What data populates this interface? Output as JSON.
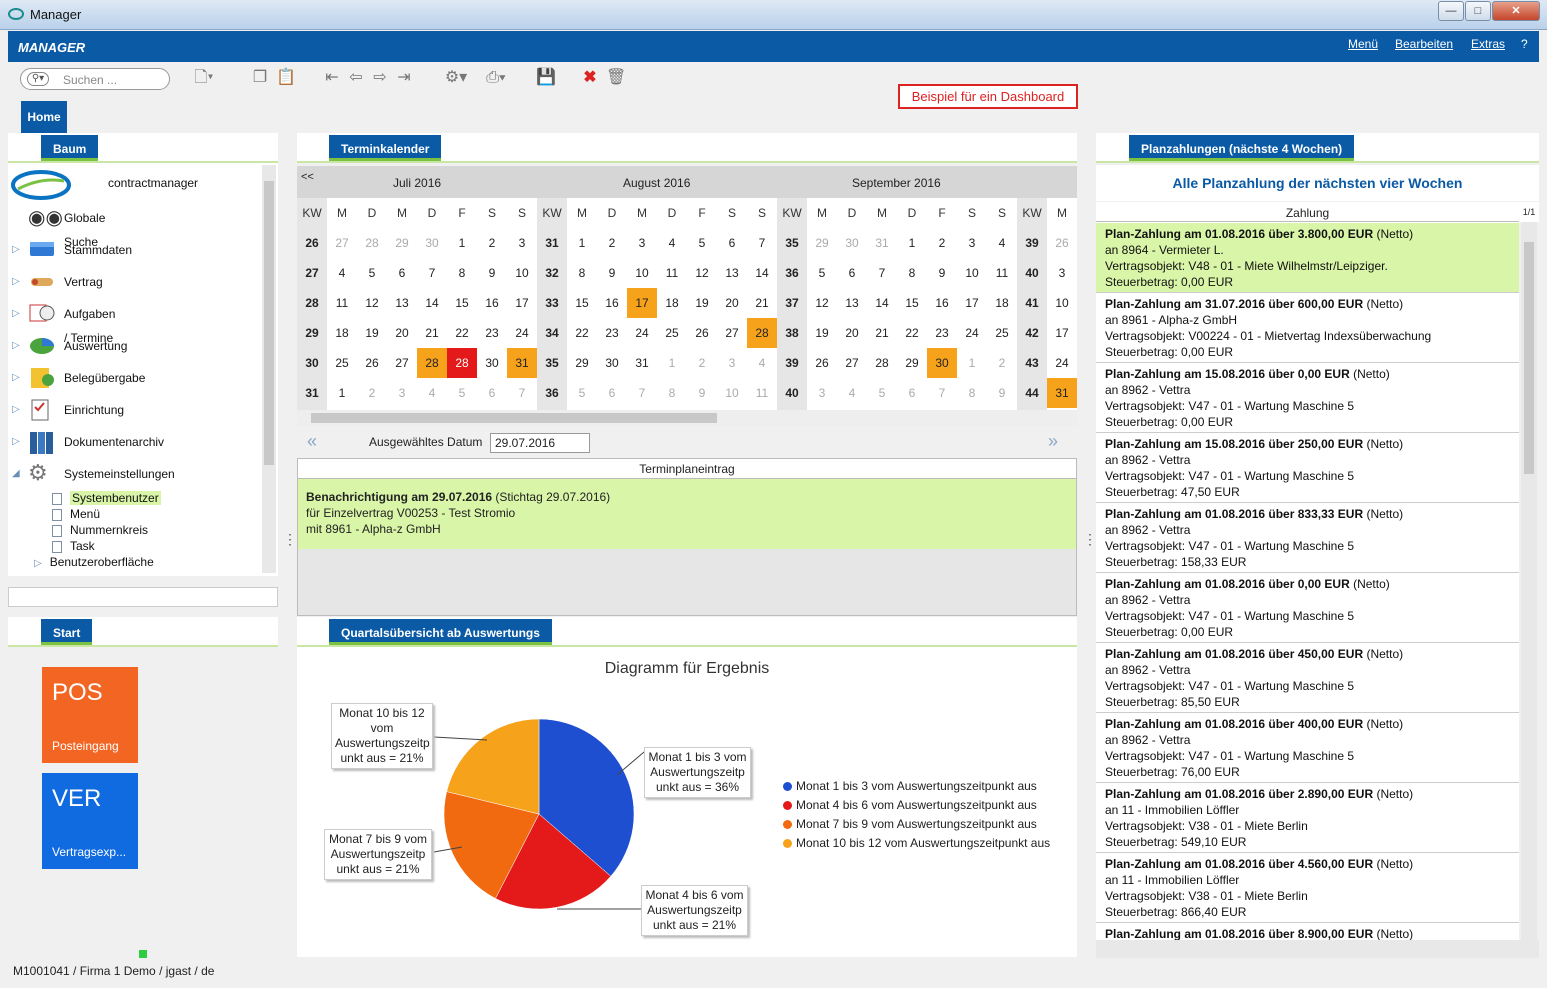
{
  "window": {
    "title": "Manager"
  },
  "appbar": {
    "brand": "MANAGER",
    "menu": [
      "Menü",
      "Bearbeiten",
      "Extras",
      "?"
    ]
  },
  "toolbar": {
    "search_placeholder": "Suchen ..."
  },
  "dashboard_label": "Beispiel für ein Dashboard",
  "home_tab": "Home",
  "panels": {
    "baum": "Baum",
    "termin": "Terminkalender",
    "plan": "Planzahlungen (nächste 4 Wochen)",
    "start": "Start",
    "quartal": "Quartalsübersicht ab Auswertungs"
  },
  "tree": {
    "root": "contractmanager",
    "items": [
      "Globale Suche",
      "Stammdaten",
      "Vertrag",
      "Aufgaben / Termine",
      "Auswertung",
      "Belegübergabe",
      "Einrichtung",
      "Dokumentenarchiv",
      "Systemeinstellungen"
    ],
    "sub": [
      "Systembenutzer",
      "Menü",
      "Nummernkreis",
      "Task"
    ],
    "after": "Benutzeroberfläche"
  },
  "calendar": {
    "prev": "<<",
    "months": [
      "Juli 2016",
      "August 2016",
      "September 2016"
    ],
    "weekday_header": [
      "KW",
      "M",
      "D",
      "M",
      "D",
      "F",
      "S",
      "S",
      "KW",
      "M",
      "D",
      "M",
      "D",
      "F",
      "S",
      "S",
      "KW",
      "M",
      "D",
      "M",
      "D",
      "F",
      "S",
      "S",
      "KW",
      "M"
    ],
    "rows": [
      [
        "26",
        "27",
        "28",
        "29",
        "30",
        "1",
        "2",
        "3",
        "31",
        "1",
        "2",
        "3",
        "4",
        "5",
        "6",
        "7",
        "35",
        "29",
        "30",
        "31",
        "1",
        "2",
        "3",
        "4",
        "39",
        "26"
      ],
      [
        "27",
        "4",
        "5",
        "6",
        "7",
        "8",
        "9",
        "10",
        "32",
        "8",
        "9",
        "10",
        "11",
        "12",
        "13",
        "14",
        "36",
        "5",
        "6",
        "7",
        "8",
        "9",
        "10",
        "11",
        "40",
        "3"
      ],
      [
        "28",
        "11",
        "12",
        "13",
        "14",
        "15",
        "16",
        "17",
        "33",
        "15",
        "16",
        "17",
        "18",
        "19",
        "20",
        "21",
        "37",
        "12",
        "13",
        "14",
        "15",
        "16",
        "17",
        "18",
        "41",
        "10"
      ],
      [
        "29",
        "18",
        "19",
        "20",
        "21",
        "22",
        "23",
        "24",
        "34",
        "22",
        "23",
        "24",
        "25",
        "26",
        "27",
        "28",
        "38",
        "19",
        "20",
        "21",
        "22",
        "23",
        "24",
        "25",
        "42",
        "17"
      ],
      [
        "30",
        "25",
        "26",
        "27",
        "28",
        "28",
        "30",
        "31",
        "35",
        "29",
        "30",
        "31",
        "1",
        "2",
        "3",
        "4",
        "39",
        "26",
        "27",
        "28",
        "29",
        "30",
        "1",
        "2",
        "43",
        "24"
      ],
      [
        "31",
        "1",
        "2",
        "3",
        "4",
        "5",
        "6",
        "7",
        "36",
        "5",
        "6",
        "7",
        "8",
        "9",
        "10",
        "11",
        "40",
        "3",
        "4",
        "5",
        "6",
        "7",
        "8",
        "9",
        "44",
        "31"
      ]
    ]
  },
  "selected": {
    "label": "Ausgewähltes Datum",
    "value": "29.07.2016"
  },
  "terminplan": {
    "header": "Terminplaneintrag",
    "line1_bold": "Benachrichtigung am 29.07.2016",
    "line1_rest": " (Stichtag 29.07.2016)",
    "line2": "für Einzelvertrag V00253 - Test Stromio",
    "line3": "mit 8961 - Alpha-z GmbH"
  },
  "chart_data": {
    "type": "pie",
    "title": "Diagramm für Ergebnis",
    "labels": [
      "Monat 1 bis 3 vom Auswertungszeitpunkt aus",
      "Monat 4 bis 6 vom Auswertungszeitpunkt aus",
      "Monat 7 bis 9 vom Auswertungszeitpunkt aus",
      "Monat 10 bis 12 vom Auswertungszeitpunkt aus"
    ],
    "values": [
      36,
      21,
      21,
      21
    ],
    "colors": [
      "#1f4fd1",
      "#e41a1a",
      "#f26a10",
      "#f7a21b"
    ],
    "callouts": [
      "Monat 1 bis 3 vom Auswertungszeitp unkt aus = 36%",
      "Monat 4 bis 6 vom Auswertungszeitp unkt aus = 21%",
      "Monat 7 bis 9 vom Auswertungszeitp unkt aus = 21%",
      "Monat 10 bis 12 vom Auswertungszeitp unkt aus = 21%"
    ]
  },
  "payments": {
    "title": "Alle Planzahlung der nächsten vier Wochen",
    "column": "Zahlung",
    "page": "1/1",
    "items": [
      {
        "head": "Plan-Zahlung am 01.08.2016 über 3.800,00 EUR",
        "net": " (Netto)",
        "to": "an 8964 - Vermieter L.",
        "obj": "Vertragsobjekt: V48 - 01 - Miete Wilhelmstr/Leipziger.",
        "tax": "Steuerbetrag: 0,00 EUR"
      },
      {
        "head": "Plan-Zahlung am 31.07.2016 über 600,00 EUR",
        "net": " (Netto)",
        "to": "an 8961 - Alpha-z GmbH",
        "obj": "Vertragsobjekt: V00224 - 01 - Mietvertag Indexsüberwachung",
        "tax": "Steuerbetrag: 0,00 EUR"
      },
      {
        "head": "Plan-Zahlung am 15.08.2016 über 0,00 EUR",
        "net": " (Netto)",
        "to": "an 8962 - Vettra",
        "obj": "Vertragsobjekt: V47 - 01 - Wartung Maschine 5",
        "tax": "Steuerbetrag: 0,00 EUR"
      },
      {
        "head": "Plan-Zahlung am 15.08.2016 über 250,00 EUR",
        "net": " (Netto)",
        "to": "an 8962 - Vettra",
        "obj": "Vertragsobjekt: V47 - 01 - Wartung Maschine 5",
        "tax": "Steuerbetrag: 47,50 EUR"
      },
      {
        "head": "Plan-Zahlung am 01.08.2016 über 833,33 EUR",
        "net": " (Netto)",
        "to": "an 8962 - Vettra",
        "obj": "Vertragsobjekt: V47 - 01 - Wartung Maschine 5",
        "tax": "Steuerbetrag: 158,33 EUR"
      },
      {
        "head": "Plan-Zahlung am 01.08.2016 über 0,00 EUR",
        "net": " (Netto)",
        "to": "an 8962 - Vettra",
        "obj": "Vertragsobjekt: V47 - 01 - Wartung Maschine 5",
        "tax": "Steuerbetrag: 0,00 EUR"
      },
      {
        "head": "Plan-Zahlung am 01.08.2016 über 450,00 EUR",
        "net": " (Netto)",
        "to": "an 8962 - Vettra",
        "obj": "Vertragsobjekt: V47 - 01 - Wartung Maschine 5",
        "tax": "Steuerbetrag: 85,50 EUR"
      },
      {
        "head": "Plan-Zahlung am 01.08.2016 über 400,00 EUR",
        "net": " (Netto)",
        "to": "an 8962 - Vettra",
        "obj": "Vertragsobjekt: V47 - 01 - Wartung Maschine 5",
        "tax": "Steuerbetrag: 76,00 EUR"
      },
      {
        "head": "Plan-Zahlung am 01.08.2016 über 2.890,00 EUR",
        "net": " (Netto)",
        "to": "an 11 - Immobilien Löffler",
        "obj": "Vertragsobjekt: V38 - 01 - Miete Berlin",
        "tax": "Steuerbetrag: 549,10 EUR"
      },
      {
        "head": "Plan-Zahlung am 01.08.2016 über 4.560,00 EUR",
        "net": " (Netto)",
        "to": "an 11 - Immobilien Löffler",
        "obj": "Vertragsobjekt: V38 - 01 - Miete Berlin",
        "tax": "Steuerbetrag: 866,40 EUR"
      },
      {
        "head": "Plan-Zahlung am 01.08.2016 über 8.900,00 EUR",
        "net": " (Netto)",
        "to": "",
        "obj": "",
        "tax": ""
      }
    ]
  },
  "tiles": [
    {
      "big": "POS",
      "small": "Posteingang",
      "color": "#f26522"
    },
    {
      "big": "VER",
      "small": "Vertragsexp...",
      "color": "#0f6bdf"
    }
  ],
  "status": "M1001041 / Firma 1 Demo / jgast / de"
}
